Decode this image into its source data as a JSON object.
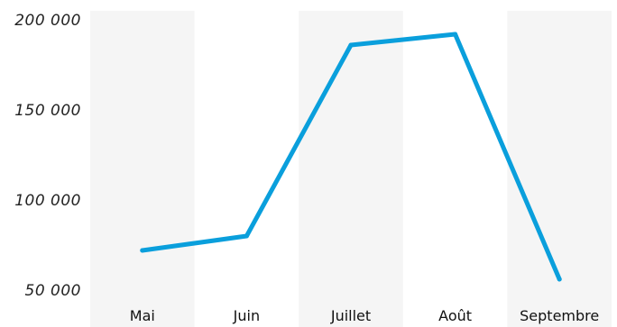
{
  "chart_data": {
    "type": "line",
    "categories": [
      "Mai",
      "Juin",
      "Juillet",
      "Août",
      "Septembre"
    ],
    "series": [
      {
        "values": [
          72000,
          80000,
          186000,
          192000,
          56000
        ]
      }
    ],
    "y_ticks": [
      {
        "value": 200000,
        "label": "200 000"
      },
      {
        "value": 150000,
        "label": "150 000"
      },
      {
        "value": 100000,
        "label": "100 000"
      },
      {
        "value": 50000,
        "label": "50 000"
      }
    ],
    "ylim": [
      50000,
      200000
    ],
    "title": "",
    "xlabel": "",
    "ylabel": "",
    "grid": false,
    "alternating_column_bands": true,
    "colors": {
      "line": "#0a9fdc",
      "band": "#f5f5f5",
      "text": "#222222"
    }
  }
}
